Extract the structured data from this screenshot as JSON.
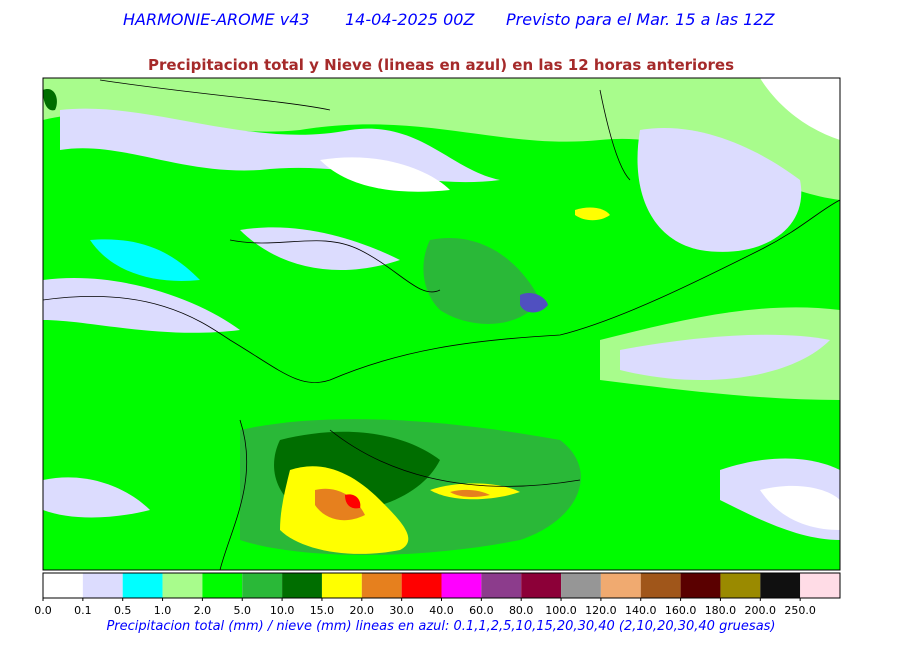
{
  "header": {
    "model": "HARMONIE-AROME v43",
    "run": "14-04-2025 00Z",
    "valid": "Previsto para el Mar. 15 a las 12Z"
  },
  "subtitle": "Precipitacion total y Nieve (lineas en azul) en las 12 horas anteriores",
  "colorbar": {
    "labels": [
      "0.0",
      "0.1",
      "0.5",
      "1.0",
      "2.0",
      "5.0",
      "10.0",
      "15.0",
      "20.0",
      "30.0",
      "40.0",
      "60.0",
      "80.0",
      "100.0",
      "120.0",
      "140.0",
      "160.0",
      "180.0",
      "200.0",
      "250.0"
    ],
    "colors": [
      "#ffffff",
      "#dcdcfe",
      "#00ffff",
      "#a8fc8c",
      "#00fc00",
      "#2ab838",
      "#006e00",
      "#ffff00",
      "#e6801e",
      "#ff0000",
      "#ff00ff",
      "#8c3c8c",
      "#8c0038",
      "#969696",
      "#f0aa70",
      "#a0561a",
      "#5a0000",
      "#9a8a00",
      "#101010",
      "#ffdce6"
    ]
  },
  "caption": "Precipitacion total (mm) / nieve (mm) lineas en azul: 0.1,1,2,5,10,15,20,30,40  (2,10,20,30,40 gruesas)"
}
